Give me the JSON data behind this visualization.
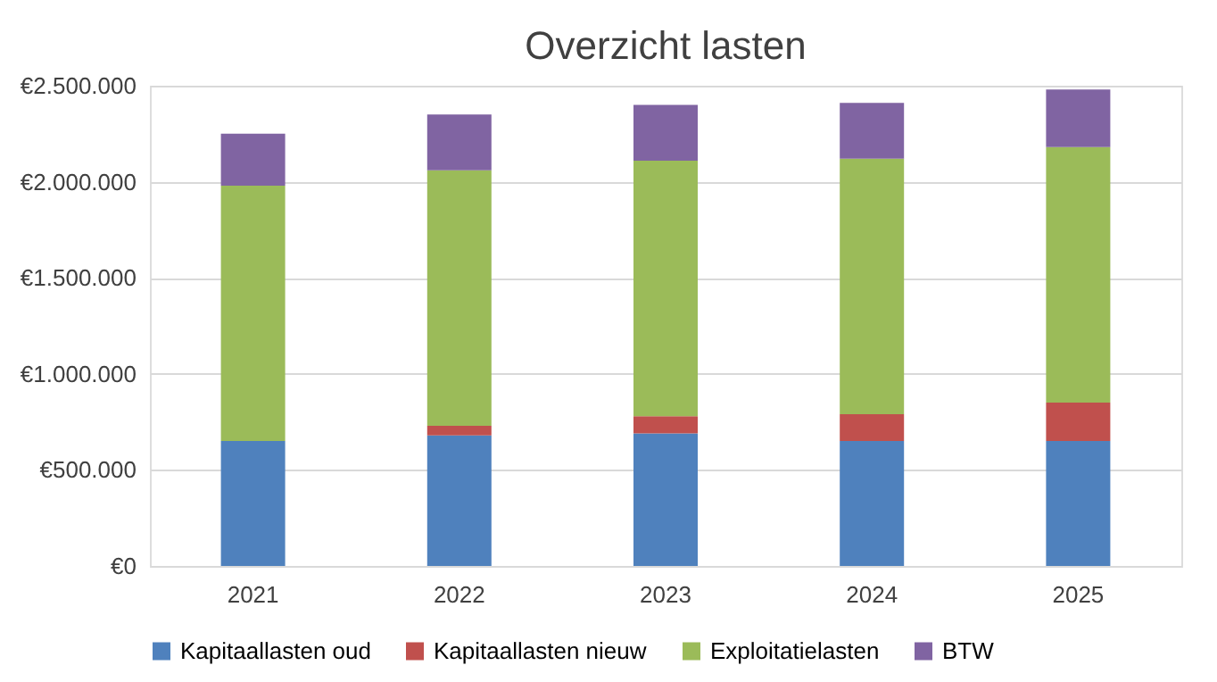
{
  "chart_data": {
    "type": "bar",
    "title": "Overzicht lasten",
    "stacked": true,
    "categories": [
      "2021",
      "2022",
      "2023",
      "2024",
      "2025"
    ],
    "series": [
      {
        "name": "Kapitaallasten oud",
        "color": "#4f81bd",
        "values": [
          650000,
          680000,
          690000,
          650000,
          650000
        ]
      },
      {
        "name": "Kapitaallasten nieuw",
        "color": "#c0504d",
        "values": [
          0,
          50000,
          90000,
          140000,
          200000
        ]
      },
      {
        "name": "Exploitatielasten",
        "color": "#9bbb59",
        "values": [
          1330000,
          1330000,
          1330000,
          1330000,
          1330000
        ]
      },
      {
        "name": "BTW",
        "color": "#8064a2",
        "values": [
          270000,
          290000,
          290000,
          290000,
          300000
        ]
      }
    ],
    "ylim": [
      0,
      2500000
    ],
    "yticks": [
      {
        "value": 0,
        "label": "€0"
      },
      {
        "value": 500000,
        "label": "€500.000"
      },
      {
        "value": 1000000,
        "label": "€1.000.000"
      },
      {
        "value": 1500000,
        "label": "€1.500.000"
      },
      {
        "value": 2000000,
        "label": "€2.000.000"
      },
      {
        "value": 2500000,
        "label": "€2.500.000"
      }
    ],
    "grid": "y",
    "legend": "bottom"
  }
}
